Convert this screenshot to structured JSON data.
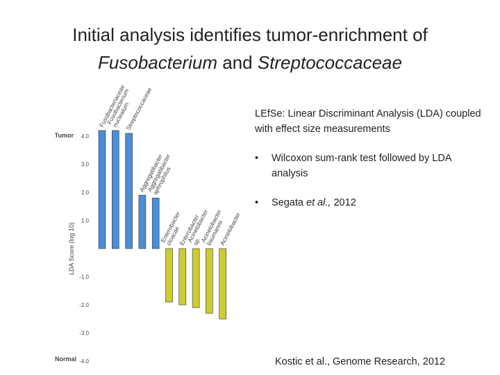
{
  "slide": {
    "title_line1": "Initial analysis identifies tumor-enrichment of",
    "title_line2_a": "Fusobacterium",
    "title_line2_b": " and ",
    "title_line2_c": "Streptococcaceae",
    "description": "LEfSe: Linear Discriminant Analysis (LDA) coupled with effect size measurements",
    "bullets": [
      {
        "marker": "•",
        "text": "Wilcoxon sum-rank test followed by LDA analysis"
      },
      {
        "marker": "•",
        "text_before": "Segata ",
        "text_italic": "et al.,",
        "text_after": " 2012"
      }
    ],
    "citation": "Kostic et al., Genome Research, 2012"
  },
  "chart_data": {
    "type": "bar",
    "ylabel": "LDA Score (log 10)",
    "ylim": [
      -4.0,
      4.0
    ],
    "yticks": [
      4.0,
      3.0,
      2.0,
      1.0,
      -1.0,
      -2.0,
      -3.0,
      -4.0
    ],
    "ytick_labels": [
      "4.0",
      "3.0",
      "2.0",
      "1.0",
      "-1.0",
      "-2.0",
      "-3.0",
      "-4.0"
    ],
    "top_group_label": "Tumor",
    "bottom_group_label": "Normal",
    "grid": false,
    "colors": {
      "tumor": "#4a8fd6",
      "normal": "#cccc33"
    },
    "categories": [
      "Fusobacteriaceae",
      "Fusobacterium nucleatum",
      "Streptococcaceae",
      "Aggregatibacter",
      "Aggregatibacter aphrophilus",
      "Enterobacter cloacae",
      "Enterobacter",
      "Acinetobacter sp.",
      "Acinetobacter baumannii",
      "Acinetobacter"
    ],
    "series": [
      {
        "values": [
          4.2,
          4.2,
          4.1,
          1.9,
          1.8,
          -1.9,
          -2.0,
          -2.1,
          -2.3,
          -2.5
        ]
      }
    ]
  }
}
